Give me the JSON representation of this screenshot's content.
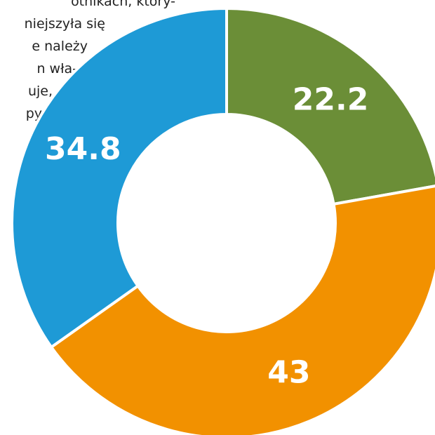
{
  "background_text": [
    "otnikach, który-",
    "niejszyła się",
    "e należy",
    "n wła-",
    "uje,",
    "py"
  ],
  "chart_data": {
    "type": "donut",
    "values": [
      22.2,
      43,
      34.8
    ],
    "colors": [
      "#6b8e37",
      "#f29100",
      "#1e9ad6"
    ]
  }
}
